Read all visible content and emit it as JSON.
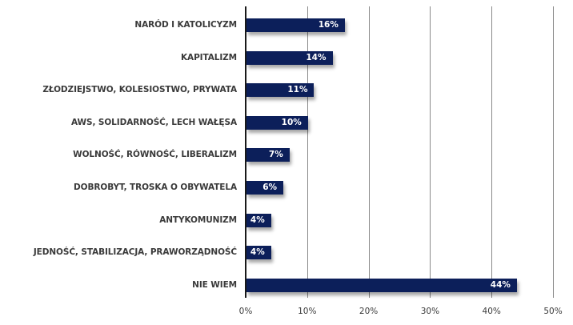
{
  "chart_data": {
    "type": "bar",
    "orientation": "horizontal",
    "title": "",
    "xlabel": "",
    "ylabel": "",
    "xlim": [
      0,
      50
    ],
    "grid": true,
    "legend": null,
    "categories": [
      "NARÓD I KATOLICYZM",
      "KAPITALIZM",
      "ZŁODZIEJSTWO, KOLESIOSTWO, PRYWATA",
      "AWS, SOLIDARNOŚĆ, LECH WAŁĘSA",
      "WOLNOŚĆ, RÓWNOŚĆ, LIBERALIZM",
      "DOBROBYT, TROSKA O OBYWATELA",
      "ANTYKOMUNIZM",
      "JEDNOŚĆ, STABILIZACJA, PRAWORZĄDNOŚĆ",
      "NIE WIEM"
    ],
    "values": [
      16,
      14,
      11,
      10,
      7,
      6,
      4,
      4,
      44
    ],
    "value_labels": [
      "16%",
      "14%",
      "11%",
      "10%",
      "7%",
      "6%",
      "4%",
      "4%",
      "44%"
    ],
    "x_ticks": [
      "0%",
      "10%",
      "20%",
      "30%",
      "40%",
      "50%"
    ],
    "bar_color": "#0c1f5a"
  }
}
